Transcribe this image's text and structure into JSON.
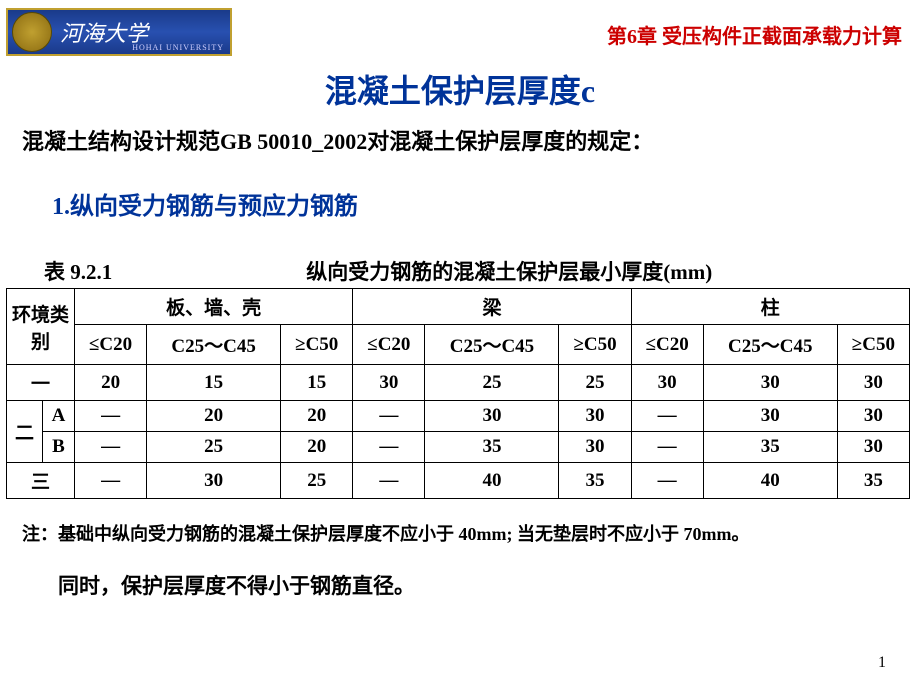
{
  "colors": {
    "header_red": "#cc0000",
    "title_blue": "#003399",
    "black": "#000000"
  },
  "fonts": {
    "chapter_size": 20,
    "title_size": 32,
    "subtitle_size": 22,
    "section_size": 24,
    "table_caption_size": 21,
    "table_cell_size": 19,
    "note_size": 18,
    "bottom_size": 21
  },
  "logo": {
    "name": "河海大学",
    "en": "HOHAI UNIVERSITY"
  },
  "chapter": "第6章  受压构件正截面承载力计算",
  "title": "混凝土保护层厚度c",
  "subtitle": "混凝土结构设计规范GB 50010_2002对混凝土保护层厚度的规定：",
  "section1": "1.纵向受力钢筋与预应力钢筋",
  "table": {
    "caption_label": "表 9.2.1",
    "caption_title": "纵向受力钢筋的混凝土保护层最小厚度(mm)",
    "row_header": "环境类别",
    "groups": [
      "板、墙、壳",
      "梁",
      "柱"
    ],
    "subcols": [
      "≤C20",
      "C25～C45",
      "≥C50"
    ],
    "rows": [
      {
        "rowspan_label": "一",
        "sub": "",
        "cells": [
          "20",
          "15",
          "15",
          "30",
          "25",
          "25",
          "30",
          "30",
          "30"
        ]
      },
      {
        "rowspan_label": "二",
        "sub": "A",
        "cells": [
          "—",
          "20",
          "20",
          "—",
          "30",
          "30",
          "—",
          "30",
          "30"
        ]
      },
      {
        "rowspan_label": "",
        "sub": "B",
        "cells": [
          "—",
          "25",
          "20",
          "—",
          "35",
          "30",
          "—",
          "35",
          "30"
        ]
      },
      {
        "rowspan_label": "三",
        "sub": "",
        "cells": [
          "—",
          "30",
          "25",
          "—",
          "40",
          "35",
          "—",
          "40",
          "35"
        ]
      }
    ]
  },
  "note": "注：基础中纵向受力钢筋的混凝土保护层厚度不应小于 40mm; 当无垫层时不应小于 70mm。",
  "bottom_text": "同时，保护层厚度不得小于钢筋直径。",
  "page_num": "1"
}
